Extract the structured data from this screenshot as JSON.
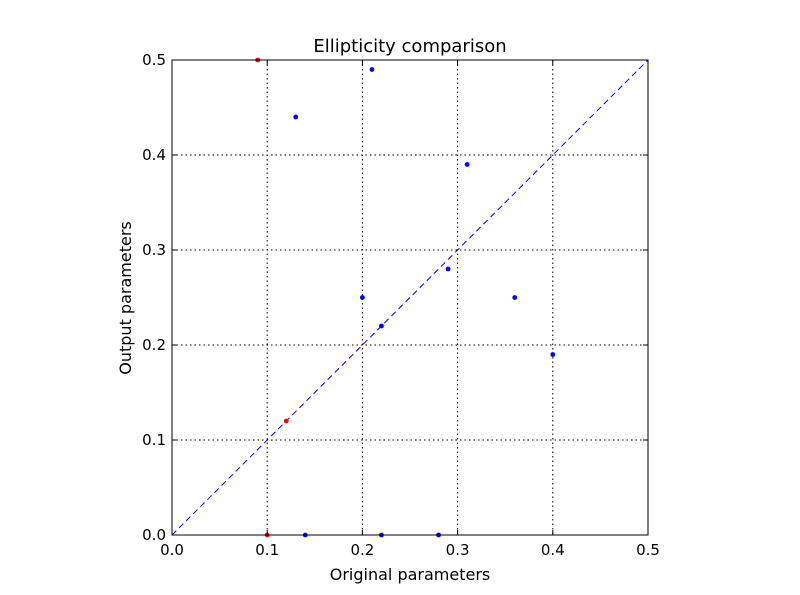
{
  "chart_data": {
    "type": "scatter",
    "title": "Ellipticity comparison",
    "xlabel": "Original parameters",
    "ylabel": "Output parameters",
    "xlim": [
      0.0,
      0.5
    ],
    "ylim": [
      0.0,
      0.5
    ],
    "xticks": [
      "0.0",
      "0.1",
      "0.2",
      "0.3",
      "0.4",
      "0.5"
    ],
    "yticks": [
      "0.0",
      "0.1",
      "0.2",
      "0.3",
      "0.4",
      "0.5"
    ],
    "grid": true,
    "reference_line": {
      "style": "dashed",
      "color": "#0000ff",
      "x": [
        0.0,
        0.5
      ],
      "y": [
        0.0,
        0.5
      ]
    },
    "series": [
      {
        "color": "#0000ff",
        "points": [
          [
            0.13,
            0.44
          ],
          [
            0.21,
            0.49
          ],
          [
            0.31,
            0.39
          ],
          [
            0.29,
            0.28
          ],
          [
            0.2,
            0.25
          ],
          [
            0.22,
            0.22
          ],
          [
            0.36,
            0.25
          ],
          [
            0.4,
            0.19
          ],
          [
            0.14,
            0.0
          ],
          [
            0.22,
            0.0
          ],
          [
            0.28,
            0.0
          ]
        ]
      },
      {
        "color": "#ff0000",
        "points": [
          [
            0.09,
            0.5
          ],
          [
            0.12,
            0.12
          ],
          [
            0.1,
            0.0
          ]
        ]
      }
    ]
  }
}
